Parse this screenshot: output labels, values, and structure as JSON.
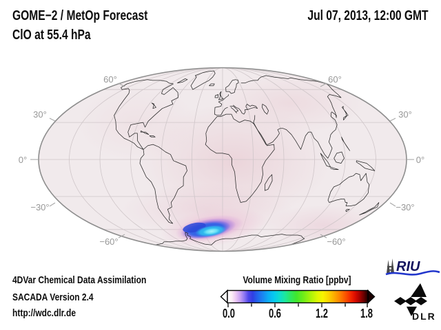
{
  "header": {
    "title_line1": "GOME−2 / MetOp Forecast",
    "title_line2": "ClO at 55.4 hPa",
    "datetime": "Jul 07, 2013, 12:00 GMT"
  },
  "map": {
    "lat_labels_left": [
      "60°",
      "30°",
      "0°",
      "−30°",
      "−60°"
    ],
    "lat_labels_right": [
      "60°",
      "30°",
      "0°",
      "−30°",
      "−60°"
    ]
  },
  "colorbar": {
    "title": "Volume Mixing Ratio [ppbv]",
    "tick_labels": [
      "0.0",
      "0.6",
      "1.2",
      "1.8"
    ],
    "min": 0.0,
    "max": 1.8
  },
  "footer": {
    "line1": "4DVar Chemical Data Assimilation",
    "line2": "SACADA Version 2.4",
    "line3": "http://wdc.dlr.de"
  },
  "logos": {
    "riu_text": "RIU",
    "dlr_text": "DLR"
  },
  "colors": {
    "map_background": "#f1eaec",
    "grid": "#cfc6c9",
    "coastline": "#262626",
    "ellipse_border": "#8e8e8e",
    "label_gray": "#979797",
    "blob_core_cyan": "#35d8f0",
    "blob_blue": "#2b57e2",
    "blob_violet": "#8d6ae0",
    "blob_magenta_fringe": "#d99ad2",
    "riu_blue": "#14145f",
    "riu_wave_blue": "#2236cc"
  },
  "chart_data": {
    "type": "heatmap",
    "title": "GOME−2 / MetOp Forecast — ClO at 55.4 hPa",
    "timestamp": "Jul 07, 2013, 12:00 GMT",
    "projection": "Mollweide world map centered on 0° longitude",
    "variable": "ClO volume mixing ratio",
    "pressure_level_hPa": 55.4,
    "units": "ppbv",
    "colorbar": {
      "range": [
        0.0,
        1.8
      ],
      "labeled_ticks": [
        0.0,
        0.6,
        1.2,
        1.8
      ],
      "minor_ticks": [
        0.3,
        0.9,
        1.5
      ],
      "scale_colors": [
        "white",
        "pale pink",
        "violet",
        "indigo",
        "blue",
        "cyan",
        "green",
        "yellow",
        "orange",
        "red",
        "dark red",
        "black"
      ],
      "out_of_range_arrows": {
        "left": "white",
        "right": "black"
      }
    },
    "graticule": {
      "parallels_deg": [
        -60,
        -30,
        0,
        30,
        60
      ],
      "meridian_spacing_deg": 30,
      "latitude_labels_both_sides": true
    },
    "features": [
      {
        "name": "Antarctic ClO enhancement",
        "lat_range": [
          -75,
          -55
        ],
        "lon_range": [
          -65,
          10
        ],
        "peak_value_ppbv": 0.45,
        "description": "cyan–blue maximum over the Antarctic Peninsula / Weddell Sea with violet and magenta-pink fringe"
      },
      {
        "name": "global background",
        "value_ppbv": 0.05,
        "description": "near-zero pale pink background over the rest of the globe, slightly enhanced over Africa and southern mid-latitudes"
      }
    ]
  }
}
